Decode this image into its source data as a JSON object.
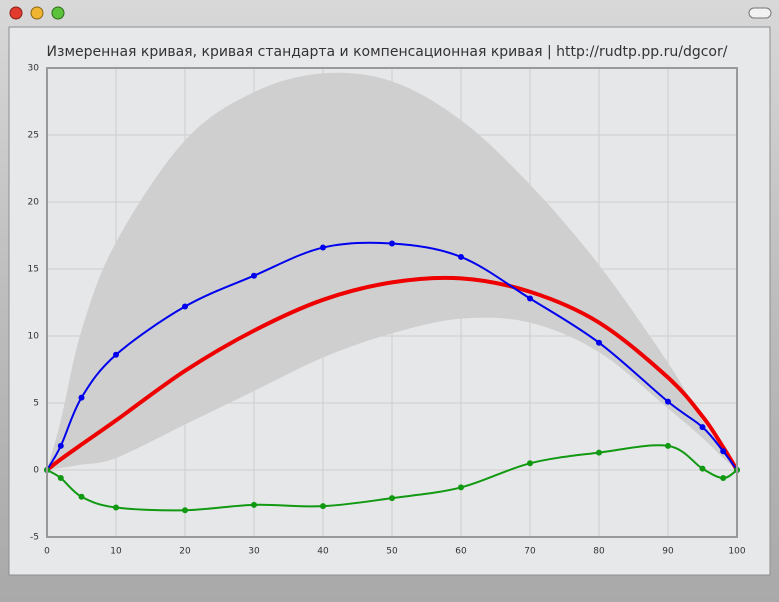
{
  "chart_data": {
    "type": "line",
    "title": "Измеренная кривая, кривая стандарта и компенсационная кривая | http://rudtp.pp.ru/dgcor/",
    "x": [
      0,
      2,
      5,
      10,
      20,
      30,
      40,
      50,
      60,
      70,
      80,
      90,
      95,
      98,
      100
    ],
    "band": {
      "color": "#cfcfcf",
      "upper": [
        0,
        3.7,
        10.4,
        17,
        24.6,
        28.2,
        29.6,
        29.0,
        26.1,
        21.3,
        15.3,
        8.0,
        3.7,
        1.5,
        0
      ],
      "lower": [
        0,
        0.15,
        0.4,
        0.9,
        3.4,
        5.9,
        8.4,
        10.2,
        11.3,
        11.0,
        8.8,
        4.6,
        2.4,
        0.9,
        0
      ]
    },
    "series": [
      {
        "color": "#ee0000",
        "width": 4,
        "markers": false,
        "values": [
          0,
          0.8,
          1.9,
          3.7,
          7.4,
          10.4,
          12.7,
          14.0,
          14.3,
          13.3,
          11.0,
          6.9,
          4.0,
          1.7,
          0
        ]
      },
      {
        "color": "#0000ee",
        "width": 2,
        "markers": true,
        "values": [
          0,
          1.8,
          5.4,
          8.6,
          12.2,
          14.5,
          16.6,
          16.9,
          15.9,
          12.8,
          9.5,
          5.1,
          3.2,
          1.4,
          0
        ]
      },
      {
        "color": "#119911",
        "width": 2,
        "markers": true,
        "values": [
          0,
          -0.6,
          -2.0,
          -2.8,
          -3.0,
          -2.6,
          -2.7,
          -2.1,
          -1.3,
          0.5,
          1.3,
          1.8,
          0.1,
          -0.6,
          0
        ]
      }
    ],
    "xlim": [
      0,
      100
    ],
    "xticks": [
      0,
      10,
      20,
      30,
      40,
      50,
      60,
      70,
      80,
      90,
      100
    ],
    "ylim": [
      -5,
      30
    ],
    "yticks": [
      -5,
      0,
      5,
      10,
      15,
      20,
      25,
      30
    ],
    "grid": true
  }
}
